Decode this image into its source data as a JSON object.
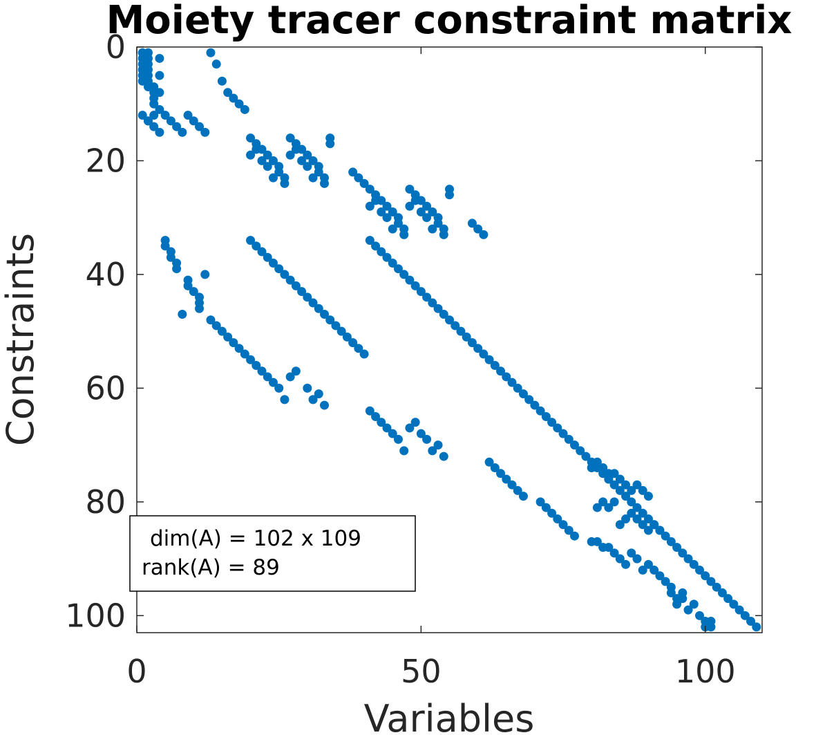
{
  "chart_data": {
    "type": "scatter",
    "title": "Moiety tracer constraint matrix",
    "xlabel": "Variables",
    "ylabel": "Constraints",
    "xlim": [
      0,
      110
    ],
    "ylim": [
      0,
      103
    ],
    "y_reversed": true,
    "xticks": [
      0,
      50,
      100
    ],
    "yticks": [
      0,
      20,
      40,
      60,
      80,
      100
    ],
    "grid": false,
    "marker_color": "#0072BD",
    "annotation": [
      "dim(A) = 102 x 109",
      "rank(A) = 89"
    ],
    "points": [
      [
        1,
        1
      ],
      [
        1,
        2
      ],
      [
        1,
        3
      ],
      [
        1,
        4
      ],
      [
        1,
        5
      ],
      [
        1,
        6
      ],
      [
        2,
        1
      ],
      [
        2,
        2
      ],
      [
        2,
        3
      ],
      [
        2,
        4
      ],
      [
        2,
        5
      ],
      [
        2,
        6
      ],
      [
        2,
        7
      ],
      [
        3,
        7
      ],
      [
        3,
        8
      ],
      [
        3,
        9
      ],
      [
        3,
        10
      ],
      [
        4,
        2
      ],
      [
        4,
        5
      ],
      [
        4,
        8
      ],
      [
        4,
        11
      ],
      [
        3,
        12
      ],
      [
        2,
        13
      ],
      [
        1,
        12
      ],
      [
        2,
        13
      ],
      [
        3,
        14
      ],
      [
        4,
        15
      ],
      [
        5,
        12
      ],
      [
        6,
        13
      ],
      [
        7,
        14
      ],
      [
        8,
        15
      ],
      [
        9,
        12
      ],
      [
        10,
        13
      ],
      [
        11,
        14
      ],
      [
        12,
        15
      ],
      [
        13,
        1
      ],
      [
        14,
        3
      ],
      [
        15,
        6
      ],
      [
        16,
        8
      ],
      [
        17,
        9
      ],
      [
        18,
        10
      ],
      [
        19,
        11
      ],
      [
        20,
        16
      ],
      [
        20,
        19
      ],
      [
        21,
        17
      ],
      [
        21,
        18
      ],
      [
        22,
        18
      ],
      [
        22,
        20
      ],
      [
        23,
        19
      ],
      [
        23,
        21
      ],
      [
        24,
        20
      ],
      [
        24,
        23
      ],
      [
        25,
        21
      ],
      [
        25,
        22
      ],
      [
        26,
        23
      ],
      [
        26,
        24
      ],
      [
        27,
        16
      ],
      [
        27,
        19
      ],
      [
        28,
        17
      ],
      [
        28,
        18
      ],
      [
        29,
        18
      ],
      [
        29,
        20
      ],
      [
        30,
        19
      ],
      [
        30,
        21
      ],
      [
        31,
        20
      ],
      [
        31,
        23
      ],
      [
        32,
        21
      ],
      [
        32,
        22
      ],
      [
        33,
        23
      ],
      [
        33,
        24
      ],
      [
        34,
        16
      ],
      [
        34,
        17
      ],
      [
        38,
        22
      ],
      [
        39,
        23
      ],
      [
        40,
        24
      ],
      [
        41,
        25
      ],
      [
        41,
        28
      ],
      [
        42,
        26
      ],
      [
        42,
        27
      ],
      [
        43,
        27
      ],
      [
        43,
        29
      ],
      [
        44,
        28
      ],
      [
        44,
        30
      ],
      [
        45,
        29
      ],
      [
        45,
        32
      ],
      [
        46,
        30
      ],
      [
        46,
        31
      ],
      [
        47,
        32
      ],
      [
        47,
        33
      ],
      [
        48,
        25
      ],
      [
        48,
        28
      ],
      [
        49,
        26
      ],
      [
        49,
        27
      ],
      [
        50,
        27
      ],
      [
        50,
        29
      ],
      [
        51,
        28
      ],
      [
        51,
        30
      ],
      [
        52,
        29
      ],
      [
        52,
        32
      ],
      [
        53,
        30
      ],
      [
        53,
        31
      ],
      [
        54,
        32
      ],
      [
        54,
        33
      ],
      [
        55,
        25
      ],
      [
        55,
        26
      ],
      [
        59,
        31
      ],
      [
        60,
        32
      ],
      [
        61,
        33
      ],
      [
        5,
        34
      ],
      [
        5,
        35
      ],
      [
        6,
        36
      ],
      [
        6,
        37
      ],
      [
        7,
        38
      ],
      [
        7,
        39
      ],
      [
        8,
        47
      ],
      [
        9,
        41
      ],
      [
        9,
        42
      ],
      [
        10,
        43
      ],
      [
        11,
        44
      ],
      [
        11,
        45
      ],
      [
        12,
        40
      ],
      [
        11,
        46
      ],
      [
        20,
        34
      ],
      [
        21,
        35
      ],
      [
        22,
        36
      ],
      [
        23,
        37
      ],
      [
        24,
        38
      ],
      [
        25,
        39
      ],
      [
        26,
        40
      ],
      [
        27,
        41
      ],
      [
        28,
        42
      ],
      [
        29,
        43
      ],
      [
        30,
        44
      ],
      [
        31,
        45
      ],
      [
        32,
        46
      ],
      [
        33,
        47
      ],
      [
        34,
        48
      ],
      [
        35,
        49
      ],
      [
        36,
        50
      ],
      [
        37,
        51
      ],
      [
        38,
        52
      ],
      [
        39,
        53
      ],
      [
        40,
        54
      ],
      [
        41,
        34
      ],
      [
        42,
        35
      ],
      [
        43,
        36
      ],
      [
        44,
        37
      ],
      [
        45,
        38
      ],
      [
        46,
        39
      ],
      [
        47,
        40
      ],
      [
        48,
        41
      ],
      [
        49,
        42
      ],
      [
        50,
        43
      ],
      [
        51,
        44
      ],
      [
        52,
        45
      ],
      [
        53,
        46
      ],
      [
        54,
        47
      ],
      [
        55,
        48
      ],
      [
        56,
        49
      ],
      [
        57,
        50
      ],
      [
        58,
        51
      ],
      [
        59,
        52
      ],
      [
        60,
        53
      ],
      [
        61,
        54
      ],
      [
        62,
        55
      ],
      [
        63,
        56
      ],
      [
        64,
        57
      ],
      [
        65,
        58
      ],
      [
        66,
        59
      ],
      [
        67,
        60
      ],
      [
        68,
        61
      ],
      [
        69,
        62
      ],
      [
        70,
        63
      ],
      [
        71,
        64
      ],
      [
        72,
        65
      ],
      [
        73,
        66
      ],
      [
        74,
        67
      ],
      [
        75,
        68
      ],
      [
        76,
        69
      ],
      [
        77,
        70
      ],
      [
        78,
        71
      ],
      [
        79,
        72
      ],
      [
        80,
        73
      ],
      [
        81,
        74
      ],
      [
        82,
        75
      ],
      [
        83,
        76
      ],
      [
        84,
        77
      ],
      [
        85,
        78
      ],
      [
        86,
        79
      ],
      [
        87,
        80
      ],
      [
        88,
        81
      ],
      [
        89,
        82
      ],
      [
        90,
        83
      ],
      [
        91,
        84
      ],
      [
        92,
        85
      ],
      [
        93,
        86
      ],
      [
        94,
        87
      ],
      [
        95,
        88
      ],
      [
        96,
        89
      ],
      [
        97,
        90
      ],
      [
        98,
        91
      ],
      [
        99,
        92
      ],
      [
        100,
        93
      ],
      [
        101,
        94
      ],
      [
        102,
        95
      ],
      [
        103,
        96
      ],
      [
        104,
        97
      ],
      [
        105,
        98
      ],
      [
        106,
        99
      ],
      [
        107,
        100
      ],
      [
        108,
        101
      ],
      [
        109,
        102
      ],
      [
        13,
        48
      ],
      [
        14,
        49
      ],
      [
        15,
        50
      ],
      [
        16,
        51
      ],
      [
        17,
        52
      ],
      [
        18,
        53
      ],
      [
        19,
        54
      ],
      [
        20,
        55
      ],
      [
        21,
        56
      ],
      [
        22,
        57
      ],
      [
        23,
        58
      ],
      [
        24,
        59
      ],
      [
        25,
        60
      ],
      [
        26,
        62
      ],
      [
        27,
        58
      ],
      [
        28,
        57
      ],
      [
        30,
        60
      ],
      [
        31,
        62
      ],
      [
        32,
        61
      ],
      [
        33,
        63
      ],
      [
        41,
        64
      ],
      [
        42,
        65
      ],
      [
        43,
        66
      ],
      [
        44,
        67
      ],
      [
        45,
        68
      ],
      [
        46,
        69
      ],
      [
        47,
        71
      ],
      [
        48,
        67
      ],
      [
        49,
        66
      ],
      [
        50,
        68
      ],
      [
        51,
        69
      ],
      [
        52,
        71
      ],
      [
        53,
        70
      ],
      [
        54,
        72
      ],
      [
        62,
        73
      ],
      [
        63,
        74
      ],
      [
        64,
        75
      ],
      [
        65,
        76
      ],
      [
        66,
        77
      ],
      [
        67,
        78
      ],
      [
        68,
        79
      ],
      [
        71,
        80
      ],
      [
        72,
        81
      ],
      [
        73,
        82
      ],
      [
        74,
        83
      ],
      [
        75,
        84
      ],
      [
        76,
        85
      ],
      [
        77,
        86
      ],
      [
        80,
        74
      ],
      [
        81,
        73
      ],
      [
        82,
        74
      ],
      [
        83,
        75
      ],
      [
        83,
        76
      ],
      [
        84,
        75
      ],
      [
        85,
        76
      ],
      [
        86,
        77
      ],
      [
        87,
        78
      ],
      [
        88,
        77
      ],
      [
        89,
        78
      ],
      [
        90,
        79
      ],
      [
        81,
        81
      ],
      [
        82,
        80
      ],
      [
        83,
        81
      ],
      [
        84,
        80
      ],
      [
        85,
        84
      ],
      [
        86,
        83
      ],
      [
        87,
        82
      ],
      [
        88,
        83
      ],
      [
        89,
        84
      ],
      [
        90,
        85
      ],
      [
        91,
        84
      ],
      [
        92,
        85
      ],
      [
        80,
        87
      ],
      [
        81,
        87
      ],
      [
        82,
        88
      ],
      [
        83,
        88
      ],
      [
        84,
        89
      ],
      [
        85,
        90
      ],
      [
        86,
        91
      ],
      [
        87,
        89
      ],
      [
        88,
        90
      ],
      [
        89,
        92
      ],
      [
        90,
        91
      ],
      [
        91,
        92
      ],
      [
        92,
        93
      ],
      [
        93,
        94
      ],
      [
        94,
        95
      ],
      [
        94,
        96
      ],
      [
        95,
        97
      ],
      [
        95,
        98
      ],
      [
        96,
        97
      ],
      [
        96,
        96
      ],
      [
        97,
        99
      ],
      [
        98,
        98
      ],
      [
        99,
        100
      ],
      [
        100,
        101
      ],
      [
        100,
        102
      ],
      [
        101,
        101
      ],
      [
        101,
        102
      ]
    ]
  }
}
